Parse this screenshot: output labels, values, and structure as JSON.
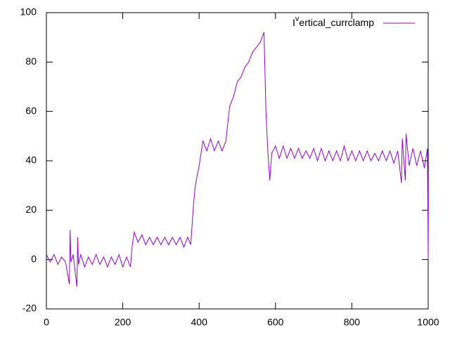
{
  "chart_data": {
    "type": "line",
    "x": [
      0,
      10,
      20,
      30,
      40,
      50,
      60,
      62,
      64,
      70,
      80,
      82,
      84,
      90,
      100,
      110,
      120,
      130,
      140,
      150,
      160,
      170,
      180,
      190,
      200,
      210,
      220,
      225,
      230,
      240,
      250,
      260,
      270,
      280,
      290,
      300,
      310,
      320,
      330,
      340,
      350,
      360,
      370,
      378,
      385,
      390,
      400,
      410,
      420,
      430,
      440,
      450,
      460,
      470,
      480,
      490,
      500,
      510,
      520,
      530,
      540,
      550,
      560,
      570,
      575,
      580,
      585,
      590,
      600,
      610,
      620,
      630,
      640,
      650,
      660,
      670,
      680,
      690,
      700,
      710,
      720,
      730,
      740,
      750,
      760,
      770,
      780,
      790,
      800,
      810,
      820,
      830,
      840,
      850,
      860,
      870,
      880,
      890,
      900,
      910,
      920,
      930,
      932,
      940,
      942,
      950,
      960,
      970,
      980,
      990,
      998,
      1000
    ],
    "series": [
      {
        "name": "Ivertical_currclamp",
        "color": "#9400d3",
        "values": [
          2,
          -1,
          2,
          -2,
          1,
          -1,
          -10,
          12,
          -1,
          2,
          -11,
          9,
          -2,
          2,
          -3,
          1,
          -2,
          2,
          -2,
          1,
          -3,
          1,
          -2,
          2,
          -3,
          1,
          -3,
          6,
          11,
          7,
          10,
          6,
          9,
          6,
          9,
          6,
          9,
          6,
          9,
          6,
          9,
          5,
          9,
          6,
          22,
          30,
          38,
          48,
          44,
          49,
          44,
          48,
          44,
          48,
          62,
          66,
          72,
          74,
          78,
          80,
          84,
          86,
          88,
          92,
          60,
          44,
          32,
          43,
          46,
          41,
          46,
          41,
          45,
          41,
          45,
          41,
          44,
          41,
          45,
          40,
          45,
          40,
          44,
          40,
          44,
          40,
          46,
          40,
          44,
          40,
          44,
          40,
          44,
          40,
          43,
          40,
          44,
          40,
          44,
          39,
          44,
          31,
          49,
          32,
          51,
          38,
          45,
          38,
          44,
          37,
          45,
          0
        ]
      }
    ],
    "xlim": [
      0,
      1000
    ],
    "ylim": [
      -20,
      100
    ],
    "xticks": [
      0,
      200,
      400,
      600,
      800,
      1000
    ],
    "yticks": [
      -20,
      0,
      20,
      40,
      60,
      80,
      100
    ]
  }
}
